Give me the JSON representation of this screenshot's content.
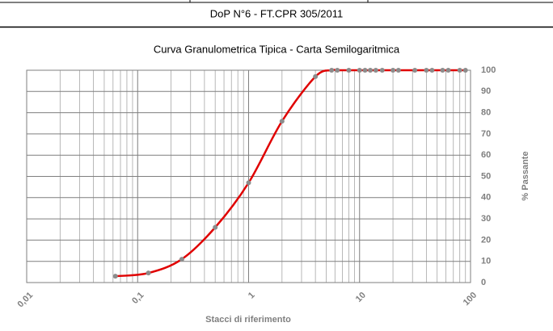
{
  "header": "DoP N°6 - FT.CPR 305/2011",
  "chart_data": {
    "type": "line",
    "title": "Curva Granulometrica Tipica - Carta Semilogaritmica",
    "x_label": "Stacci di riferimento",
    "y_label": "% Passante",
    "x_scale": "log",
    "xlim": [
      0.01,
      100
    ],
    "xticks": [
      {
        "value": 0.01,
        "label": "0,01"
      },
      {
        "value": 0.1,
        "label": "0,1"
      },
      1,
      10,
      100
    ],
    "ylim": [
      0,
      100
    ],
    "yticks": [
      0,
      10,
      20,
      30,
      40,
      50,
      60,
      70,
      80,
      90,
      100
    ],
    "y_axis_side": "right",
    "grid": true,
    "x": [
      0.063,
      0.125,
      0.25,
      0.5,
      1,
      2,
      4,
      5.6,
      6.3,
      8,
      10,
      11.2,
      12.5,
      14,
      16,
      20,
      22.4,
      31.5,
      40,
      45,
      56,
      63,
      80,
      90
    ],
    "series": [
      {
        "color": "#e00000",
        "marker_color": "#8c8c8c",
        "values": [
          3,
          4.5,
          11,
          26,
          47,
          76,
          97,
          100,
          100,
          100,
          100,
          100,
          100,
          100,
          100,
          100,
          100,
          100,
          100,
          100,
          100,
          100,
          100,
          100
        ]
      }
    ]
  }
}
